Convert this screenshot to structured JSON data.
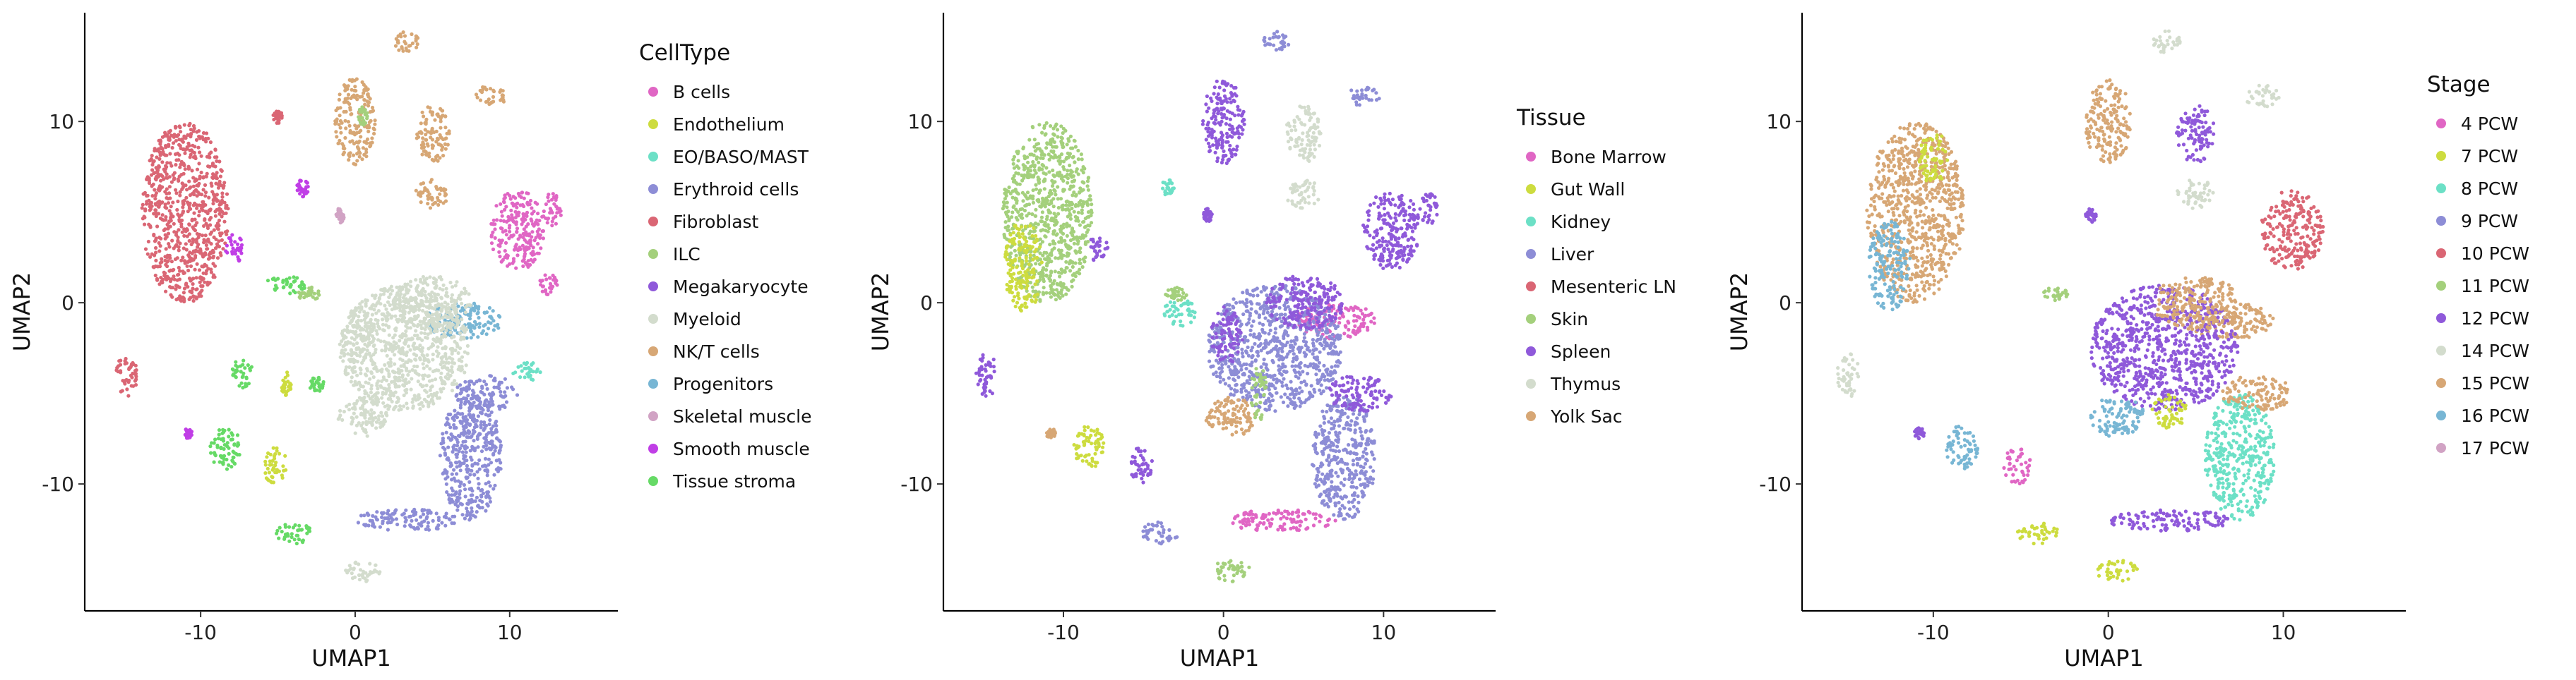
{
  "chart_data": [
    {
      "type": "scatter",
      "xlabel": "UMAP1",
      "ylabel": "UMAP2",
      "xlim": [
        -17.5,
        17
      ],
      "ylim": [
        -17,
        16
      ],
      "x_ticks": [
        -10,
        0,
        10
      ],
      "y_ticks": [
        -10,
        0,
        10
      ],
      "grid": false,
      "legend": {
        "title": "CellType",
        "placement": "right",
        "entries": [
          {
            "name": "B cells",
            "color": "#E066C4"
          },
          {
            "name": "Endothelium",
            "color": "#CDDC3F"
          },
          {
            "name": "EO/BASO/MAST",
            "color": "#6CE0C6"
          },
          {
            "name": "Erythroid cells",
            "color": "#8D8DD6"
          },
          {
            "name": "Fibroblast",
            "color": "#DA6674"
          },
          {
            "name": "ILC",
            "color": "#A4D07C"
          },
          {
            "name": "Megakaryocyte",
            "color": "#8F59DA"
          },
          {
            "name": "Myeloid",
            "color": "#D3DCCD"
          },
          {
            "name": "NK/T cells",
            "color": "#D7A775"
          },
          {
            "name": "Progenitors",
            "color": "#78B6D4"
          },
          {
            "name": "Skeletal muscle",
            "color": "#D1A3C4"
          },
          {
            "name": "Smooth muscle",
            "color": "#C03EE6"
          },
          {
            "name": "Tissue stroma",
            "color": "#66DA66"
          }
        ]
      },
      "clusters": [
        {
          "x": -11,
          "y": 5,
          "rx": 2.8,
          "ry": 5,
          "c": 4
        },
        {
          "x": -14.8,
          "y": -4,
          "rx": 0.7,
          "ry": 1.2,
          "c": 4
        },
        {
          "x": -7.8,
          "y": 3,
          "rx": 0.6,
          "ry": 0.8,
          "c": 11
        },
        {
          "x": -8.4,
          "y": -8,
          "rx": 1,
          "ry": 1.2,
          "c": 12
        },
        {
          "x": -7.3,
          "y": -3.8,
          "rx": 0.7,
          "ry": 0.9,
          "c": 12
        },
        {
          "x": -5.2,
          "y": -9,
          "rx": 0.8,
          "ry": 1,
          "c": 1
        },
        {
          "x": -4,
          "y": -12.7,
          "rx": 1.2,
          "ry": 0.6,
          "c": 12
        },
        {
          "x": -4.5,
          "y": -4.5,
          "rx": 0.4,
          "ry": 0.7,
          "c": 1
        },
        {
          "x": -4.5,
          "y": 1,
          "rx": 1.4,
          "ry": 0.5,
          "c": 12
        },
        {
          "x": -3.4,
          "y": 6.3,
          "rx": 0.4,
          "ry": 0.5,
          "c": 11
        },
        {
          "x": 0,
          "y": 10,
          "rx": 1.3,
          "ry": 2.4,
          "c": 8
        },
        {
          "x": 3.3,
          "y": 14.4,
          "rx": 0.8,
          "ry": 0.6,
          "c": 8
        },
        {
          "x": 5,
          "y": 9.3,
          "rx": 1.1,
          "ry": 1.6,
          "c": 8
        },
        {
          "x": 5,
          "y": 6,
          "rx": 1.1,
          "ry": 0.8,
          "c": 8
        },
        {
          "x": 8.8,
          "y": 11.4,
          "rx": 1,
          "ry": 0.6,
          "c": 8
        },
        {
          "x": 10.5,
          "y": 4,
          "rx": 1.8,
          "ry": 2.2,
          "c": 0
        },
        {
          "x": 12.8,
          "y": 5.2,
          "rx": 0.6,
          "ry": 1,
          "c": 0
        },
        {
          "x": 12.5,
          "y": 1,
          "rx": 0.6,
          "ry": 0.6,
          "c": 0
        },
        {
          "x": 7,
          "y": -1,
          "rx": 2.5,
          "ry": 1,
          "c": 9
        },
        {
          "x": 11.2,
          "y": -3.8,
          "rx": 1,
          "ry": 0.5,
          "c": 2
        },
        {
          "x": 3.2,
          "y": -2.5,
          "rx": 4.2,
          "ry": 3.5,
          "c": 7
        },
        {
          "x": 5,
          "y": 0,
          "rx": 2.5,
          "ry": 1.5,
          "c": 7
        },
        {
          "x": 0.5,
          "y": -6.3,
          "rx": 1.6,
          "ry": 1.1,
          "c": 7
        },
        {
          "x": 0.2,
          "y": -1.8,
          "rx": 1,
          "ry": 1.6,
          "c": 7
        },
        {
          "x": 7.5,
          "y": -8.5,
          "rx": 2,
          "ry": 3.5,
          "c": 3
        },
        {
          "x": 3.5,
          "y": -12,
          "rx": 3.5,
          "ry": 0.6,
          "c": 3
        },
        {
          "x": 8.5,
          "y": -5,
          "rx": 2,
          "ry": 1,
          "c": 3
        },
        {
          "x": 0.5,
          "y": -14.8,
          "rx": 1.2,
          "ry": 0.6,
          "c": 7
        },
        {
          "x": -1,
          "y": 4.8,
          "rx": 0.3,
          "ry": 0.4,
          "c": 10
        },
        {
          "x": 0.5,
          "y": 10.3,
          "rx": 0.3,
          "ry": 0.5,
          "c": 5
        },
        {
          "x": -2.5,
          "y": -4.5,
          "rx": 0.5,
          "ry": 0.4,
          "c": 12
        },
        {
          "x": -5,
          "y": 10.3,
          "rx": 0.3,
          "ry": 0.4,
          "c": 4
        },
        {
          "x": -3,
          "y": 0.5,
          "rx": 0.7,
          "ry": 0.4,
          "c": 5
        },
        {
          "x": -10.8,
          "y": -7.2,
          "rx": 0.3,
          "ry": 0.3,
          "c": 11
        }
      ]
    },
    {
      "type": "scatter",
      "xlabel": "UMAP1",
      "ylabel": "UMAP2",
      "xlim": [
        -17.5,
        17
      ],
      "ylim": [
        -17,
        16
      ],
      "x_ticks": [
        -10,
        0,
        10
      ],
      "y_ticks": [
        -10,
        0,
        10
      ],
      "grid": false,
      "legend": {
        "title": "Tissue",
        "placement": "right",
        "entries": [
          {
            "name": "Bone Marrow",
            "color": "#E066C4"
          },
          {
            "name": "Gut Wall",
            "color": "#CDDC3F"
          },
          {
            "name": "Kidney",
            "color": "#6CE0C6"
          },
          {
            "name": "Liver",
            "color": "#8D8DD6"
          },
          {
            "name": "Mesenteric LN",
            "color": "#DA6674"
          },
          {
            "name": "Skin",
            "color": "#A4D07C"
          },
          {
            "name": "Spleen",
            "color": "#8F59DA"
          },
          {
            "name": "Thymus",
            "color": "#D3DCCD"
          },
          {
            "name": "Yolk Sac",
            "color": "#D7A775"
          }
        ]
      },
      "clusters": [
        {
          "x": -11,
          "y": 5,
          "rx": 2.8,
          "ry": 5,
          "c": 5
        },
        {
          "x": -12.5,
          "y": 2,
          "rx": 1.2,
          "ry": 2.5,
          "c": 1
        },
        {
          "x": -14.8,
          "y": -4,
          "rx": 0.7,
          "ry": 1.2,
          "c": 6
        },
        {
          "x": -7.8,
          "y": 3,
          "rx": 0.6,
          "ry": 0.8,
          "c": 6
        },
        {
          "x": -8.4,
          "y": -8,
          "rx": 1,
          "ry": 1.2,
          "c": 1
        },
        {
          "x": -5.2,
          "y": -9,
          "rx": 0.8,
          "ry": 1,
          "c": 6
        },
        {
          "x": -4,
          "y": -12.7,
          "rx": 1.2,
          "ry": 0.6,
          "c": 3
        },
        {
          "x": -3.5,
          "y": 6.3,
          "rx": 0.4,
          "ry": 0.5,
          "c": 2
        },
        {
          "x": -2.7,
          "y": -0.5,
          "rx": 1,
          "ry": 0.8,
          "c": 2
        },
        {
          "x": 0,
          "y": 10,
          "rx": 1.3,
          "ry": 2.4,
          "c": 6
        },
        {
          "x": 3.3,
          "y": 14.4,
          "rx": 0.8,
          "ry": 0.6,
          "c": 3
        },
        {
          "x": 5,
          "y": 9.3,
          "rx": 1.1,
          "ry": 1.6,
          "c": 7
        },
        {
          "x": 5,
          "y": 6,
          "rx": 1.1,
          "ry": 0.8,
          "c": 7
        },
        {
          "x": 8.8,
          "y": 11.4,
          "rx": 1,
          "ry": 0.6,
          "c": 3
        },
        {
          "x": 10.5,
          "y": 4,
          "rx": 1.8,
          "ry": 2.2,
          "c": 6
        },
        {
          "x": 12.8,
          "y": 5.2,
          "rx": 0.6,
          "ry": 1,
          "c": 6
        },
        {
          "x": 7,
          "y": -1,
          "rx": 2.5,
          "ry": 1,
          "c": 0
        },
        {
          "x": 3.2,
          "y": -2.5,
          "rx": 4.2,
          "ry": 3.5,
          "c": 3
        },
        {
          "x": 5,
          "y": 0,
          "rx": 2.5,
          "ry": 1.5,
          "c": 6
        },
        {
          "x": 0.5,
          "y": -6.3,
          "rx": 1.6,
          "ry": 1.1,
          "c": 8
        },
        {
          "x": 0.2,
          "y": -1.8,
          "rx": 1,
          "ry": 1.6,
          "c": 6
        },
        {
          "x": 7.5,
          "y": -8.5,
          "rx": 2,
          "ry": 3.5,
          "c": 3
        },
        {
          "x": 3.5,
          "y": -12,
          "rx": 3.5,
          "ry": 0.6,
          "c": 0
        },
        {
          "x": 8.5,
          "y": -5,
          "rx": 2,
          "ry": 1,
          "c": 6
        },
        {
          "x": 0.5,
          "y": -14.8,
          "rx": 1.2,
          "ry": 0.6,
          "c": 5
        },
        {
          "x": 2.2,
          "y": -5,
          "rx": 0.5,
          "ry": 1.5,
          "c": 5
        },
        {
          "x": -1,
          "y": 4.8,
          "rx": 0.3,
          "ry": 0.4,
          "c": 6
        },
        {
          "x": -3,
          "y": 0.5,
          "rx": 0.7,
          "ry": 0.4,
          "c": 5
        },
        {
          "x": -10.8,
          "y": -7.2,
          "rx": 0.3,
          "ry": 0.3,
          "c": 8
        }
      ]
    },
    {
      "type": "scatter",
      "xlabel": "UMAP1",
      "ylabel": "UMAP2",
      "xlim": [
        -17.5,
        17
      ],
      "ylim": [
        -17,
        16
      ],
      "x_ticks": [
        -10,
        0,
        10
      ],
      "y_ticks": [
        -10,
        0,
        10
      ],
      "grid": false,
      "legend": {
        "title": "Stage",
        "placement": "right",
        "entries": [
          {
            "name": "4 PCW",
            "color": "#E066C4"
          },
          {
            "name": "7 PCW",
            "color": "#CDDC3F"
          },
          {
            "name": "8 PCW",
            "color": "#6CE0C6"
          },
          {
            "name": "9 PCW",
            "color": "#8D8DD6"
          },
          {
            "name": "10 PCW",
            "color": "#DA6674"
          },
          {
            "name": "11 PCW",
            "color": "#A4D07C"
          },
          {
            "name": "12 PCW",
            "color": "#8F59DA"
          },
          {
            "name": "14 PCW",
            "color": "#D3DCCD"
          },
          {
            "name": "15 PCW",
            "color": "#D7A775"
          },
          {
            "name": "16 PCW",
            "color": "#78B6D4"
          },
          {
            "name": "17 PCW",
            "color": "#D1A3C4"
          }
        ]
      },
      "clusters": [
        {
          "x": -11,
          "y": 5,
          "rx": 2.8,
          "ry": 5,
          "c": 8
        },
        {
          "x": -12.5,
          "y": 2,
          "rx": 1.2,
          "ry": 2.5,
          "c": 9
        },
        {
          "x": -10,
          "y": 8,
          "rx": 0.8,
          "ry": 1.5,
          "c": 1
        },
        {
          "x": -14.8,
          "y": -4,
          "rx": 0.7,
          "ry": 1.2,
          "c": 7
        },
        {
          "x": -8.4,
          "y": -8,
          "rx": 1,
          "ry": 1.2,
          "c": 9
        },
        {
          "x": -5.2,
          "y": -9,
          "rx": 0.8,
          "ry": 1,
          "c": 0
        },
        {
          "x": -4,
          "y": -12.7,
          "rx": 1.2,
          "ry": 0.6,
          "c": 1
        },
        {
          "x": 0,
          "y": 10,
          "rx": 1.3,
          "ry": 2.4,
          "c": 8
        },
        {
          "x": 3.3,
          "y": 14.4,
          "rx": 0.8,
          "ry": 0.6,
          "c": 7
        },
        {
          "x": 5,
          "y": 9.3,
          "rx": 1.1,
          "ry": 1.6,
          "c": 6
        },
        {
          "x": 5,
          "y": 6,
          "rx": 1.1,
          "ry": 0.8,
          "c": 7
        },
        {
          "x": 8.8,
          "y": 11.4,
          "rx": 1,
          "ry": 0.6,
          "c": 7
        },
        {
          "x": 10.5,
          "y": 4,
          "rx": 1.8,
          "ry": 2.2,
          "c": 4
        },
        {
          "x": 7,
          "y": -1,
          "rx": 2.5,
          "ry": 1,
          "c": 8
        },
        {
          "x": 3.2,
          "y": -2.5,
          "rx": 4.2,
          "ry": 3.5,
          "c": 6
        },
        {
          "x": 5,
          "y": 0,
          "rx": 2.5,
          "ry": 1.5,
          "c": 8
        },
        {
          "x": 3.5,
          "y": -6,
          "rx": 1,
          "ry": 1,
          "c": 1
        },
        {
          "x": 0.5,
          "y": -6.3,
          "rx": 1.6,
          "ry": 1.1,
          "c": 9
        },
        {
          "x": 7.5,
          "y": -8.5,
          "rx": 2,
          "ry": 3.5,
          "c": 2
        },
        {
          "x": 3.5,
          "y": -12,
          "rx": 3.5,
          "ry": 0.6,
          "c": 6
        },
        {
          "x": 8.5,
          "y": -5,
          "rx": 2,
          "ry": 1,
          "c": 8
        },
        {
          "x": 0.5,
          "y": -14.8,
          "rx": 1.2,
          "ry": 0.6,
          "c": 1
        },
        {
          "x": -1,
          "y": 4.8,
          "rx": 0.3,
          "ry": 0.4,
          "c": 6
        },
        {
          "x": -3,
          "y": 0.5,
          "rx": 0.7,
          "ry": 0.4,
          "c": 5
        },
        {
          "x": -10.8,
          "y": -7.2,
          "rx": 0.3,
          "ry": 0.3,
          "c": 6
        }
      ]
    }
  ]
}
